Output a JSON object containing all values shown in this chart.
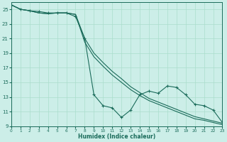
{
  "xlabel": "Humidex (Indice chaleur)",
  "bg_color": "#cceee8",
  "grid_color": "#aaddcc",
  "line_color": "#1a6b5a",
  "xlim": [
    0,
    23
  ],
  "ylim": [
    9,
    26
  ],
  "yticks": [
    9,
    11,
    13,
    15,
    17,
    19,
    21,
    23,
    25
  ],
  "xticks": [
    0,
    1,
    2,
    3,
    4,
    5,
    6,
    7,
    8,
    9,
    10,
    11,
    12,
    13,
    14,
    15,
    16,
    17,
    18,
    19,
    20,
    21,
    22,
    23
  ],
  "line1_x": [
    0,
    1,
    2,
    3,
    4,
    5,
    6,
    7,
    8,
    9,
    10,
    11,
    12,
    13,
    14,
    15,
    16,
    17,
    18,
    19,
    20,
    21,
    22,
    23
  ],
  "line1_y": [
    25.6,
    25.0,
    24.8,
    24.5,
    24.4,
    24.5,
    24.5,
    24.3,
    21.0,
    19.0,
    17.7,
    16.5,
    15.5,
    14.4,
    13.6,
    12.8,
    12.3,
    11.8,
    11.3,
    10.8,
    10.3,
    10.0,
    9.7,
    9.4
  ],
  "line2_x": [
    0,
    1,
    2,
    3,
    4,
    5,
    6,
    7,
    8,
    9,
    10,
    11,
    12,
    13,
    14,
    15,
    16,
    17,
    18,
    19,
    20,
    21,
    22,
    23
  ],
  "line2_y": [
    25.6,
    25.0,
    24.8,
    24.5,
    24.4,
    24.5,
    24.5,
    24.3,
    20.5,
    18.5,
    17.2,
    16.0,
    15.0,
    14.0,
    13.2,
    12.5,
    12.0,
    11.5,
    11.0,
    10.5,
    10.0,
    9.8,
    9.5,
    9.2
  ],
  "line3_x": [
    0,
    1,
    2,
    3,
    4,
    5,
    6,
    7,
    8,
    9,
    10,
    11,
    12,
    13,
    14,
    15,
    16,
    17,
    18,
    19,
    20,
    21,
    22,
    23
  ],
  "line3_y": [
    25.6,
    25.0,
    24.8,
    24.7,
    24.5,
    24.5,
    24.5,
    24.0,
    21.0,
    13.3,
    11.8,
    11.5,
    10.2,
    11.2,
    13.3,
    13.8,
    13.5,
    14.5,
    14.3,
    13.3,
    12.0,
    11.8,
    11.2,
    9.5
  ]
}
